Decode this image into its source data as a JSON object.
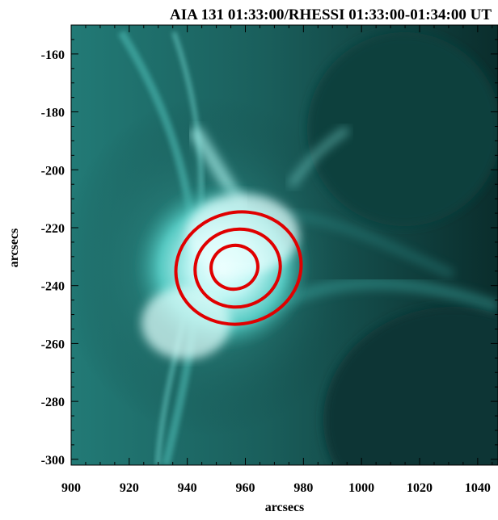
{
  "title": "AIA 131 01:33:00/RHESSI 01:33:00-01:34:00 UT",
  "axes": {
    "xlabel": "arcsecs",
    "ylabel": "arcsecs",
    "xlim": [
      900,
      1047
    ],
    "ylim": [
      -302,
      -150
    ],
    "xticks": [
      "900",
      "920",
      "940",
      "960",
      "980",
      "1000",
      "1020",
      "1040"
    ],
    "yticks": [
      "-160",
      "-180",
      "-200",
      "-220",
      "-240",
      "-260",
      "-280",
      "-300"
    ]
  },
  "colors": {
    "image_base": "#0b3a3a",
    "image_bright": "#eaffff",
    "contour": "#e00000"
  },
  "contours": [
    {
      "level": "outer"
    },
    {
      "level": "middle"
    },
    {
      "level": "inner"
    }
  ]
}
